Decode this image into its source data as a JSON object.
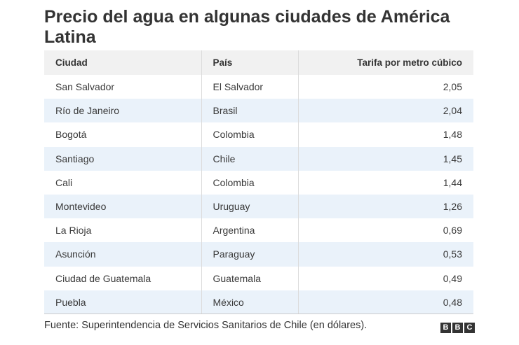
{
  "chart_data": {
    "type": "table",
    "title": "Precio del agua en algunas ciudades de América Latina",
    "columns": [
      "Ciudad",
      "País",
      "Tarifa por metro cúbico"
    ],
    "rows": [
      [
        "San Salvador",
        "El Salvador",
        "2,05"
      ],
      [
        "Río de Janeiro",
        "Brasil",
        "2,04"
      ],
      [
        "Bogotá",
        "Colombia",
        "1,48"
      ],
      [
        "Santiago",
        "Chile",
        "1,45"
      ],
      [
        "Cali",
        "Colombia",
        "1,44"
      ],
      [
        "Montevideo",
        "Uruguay",
        "1,26"
      ],
      [
        "La Rioja",
        "Argentina",
        "0,69"
      ],
      [
        "Asunción",
        "Paraguay",
        "0,53"
      ],
      [
        "Ciudad de Guatemala",
        "Guatemala",
        "0,49"
      ],
      [
        "Puebla",
        "México",
        "0,48"
      ]
    ],
    "source": "Fuente: Superintendencia de Servicios Sanitarios de Chile (en dólares)."
  },
  "logo": {
    "letters": [
      "B",
      "B",
      "C"
    ],
    "color": "#333333"
  },
  "colors": {
    "header_bg": "#f1f1f1",
    "row_alt_bg": "#eaf2fa"
  }
}
